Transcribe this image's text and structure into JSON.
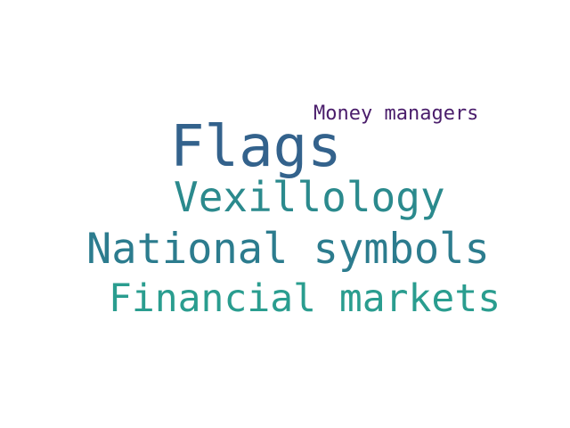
{
  "words": [
    {
      "text": "Money managers",
      "color": "#4a1d6b"
    },
    {
      "text": "Flags",
      "color": "#33628c"
    },
    {
      "text": "Vexillology",
      "color": "#2b8a8d"
    },
    {
      "text": "National symbols",
      "color": "#2c7c8e"
    },
    {
      "text": "Financial markets",
      "color": "#2a9d8f"
    }
  ]
}
